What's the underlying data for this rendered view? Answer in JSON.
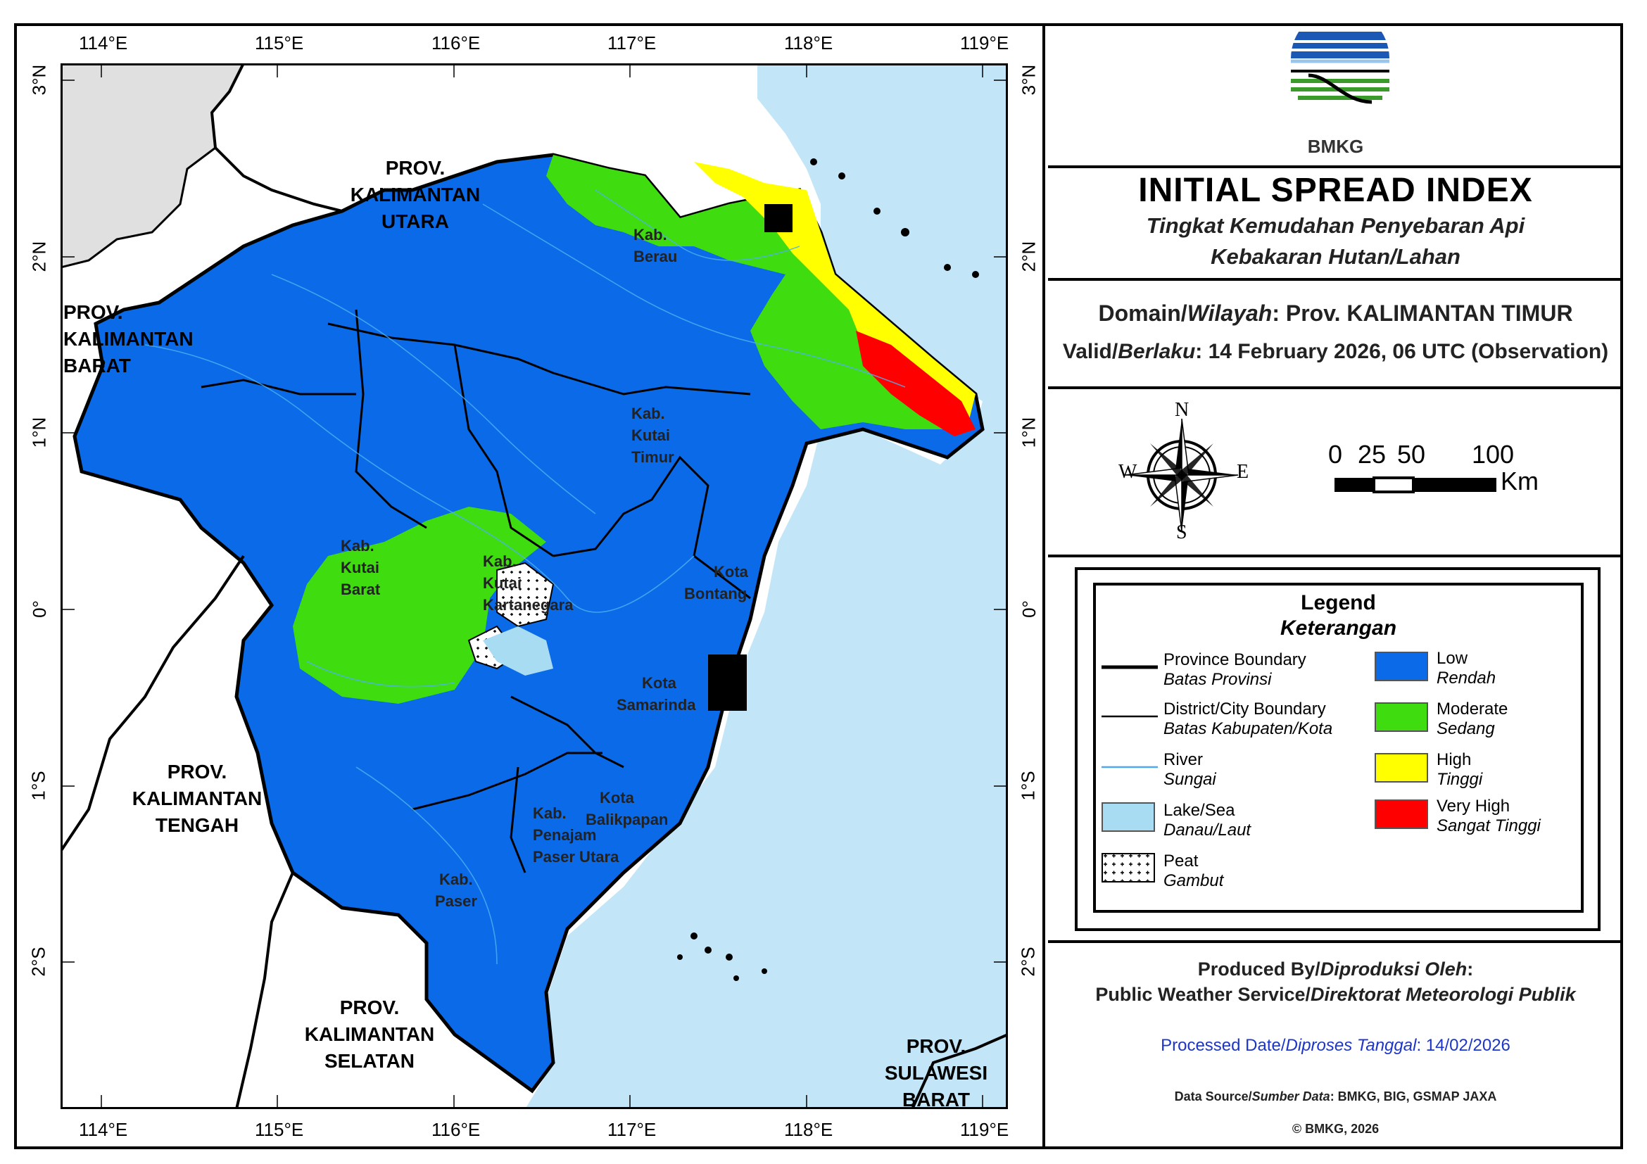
{
  "map": {
    "lon_labels": [
      "114°E",
      "115°E",
      "116°E",
      "117°E",
      "118°E",
      "119°E"
    ],
    "lat_labels": [
      "3°N",
      "2°N",
      "1°N",
      "0°",
      "1°S",
      "2°S"
    ],
    "provinces": [
      {
        "id": "kaltara",
        "lines": [
          "PROV.",
          "KALIMANTAN",
          "UTARA"
        ]
      },
      {
        "id": "kalbar",
        "lines": [
          "PROV.",
          "KALIMANTAN",
          "BARAT"
        ]
      },
      {
        "id": "kalteng",
        "lines": [
          "PROV.",
          "KALIMANTAN",
          "TENGAH"
        ]
      },
      {
        "id": "kalsel",
        "lines": [
          "PROV.",
          "KALIMANTAN",
          "SELATAN"
        ]
      },
      {
        "id": "sulbar",
        "lines": [
          "PROV.",
          "SULAWESI",
          "BARAT"
        ]
      }
    ],
    "districts": [
      {
        "id": "berau",
        "lines": [
          "Kab.",
          "Berau"
        ]
      },
      {
        "id": "kutai-timur",
        "lines": [
          "Kab.",
          "Kutai",
          "Timur"
        ]
      },
      {
        "id": "kutai-barat",
        "lines": [
          "Kab.",
          "Kutai",
          "Barat"
        ]
      },
      {
        "id": "kutai-kartanegara",
        "lines": [
          "Kab.",
          "Kutai",
          "Kartanegara"
        ]
      },
      {
        "id": "bontang",
        "lines": [
          "Kota",
          "Bontang"
        ]
      },
      {
        "id": "samarinda",
        "lines": [
          "Kota",
          "Samarinda"
        ]
      },
      {
        "id": "balikpapan",
        "lines": [
          "Kota",
          "Balikpapan"
        ]
      },
      {
        "id": "ppu",
        "lines": [
          "Kab.",
          "Penajam",
          "Paser Utara"
        ]
      },
      {
        "id": "paser",
        "lines": [
          "Kab.",
          "Paser"
        ]
      }
    ]
  },
  "header": {
    "logo_text": "BMKG",
    "title": "INITIAL SPREAD INDEX",
    "subtitle_1": "Tingkat Kemudahan Penyebaran Api",
    "subtitle_2": "Kebakaran Hutan/Lahan"
  },
  "domain": {
    "label_en": "Domain/",
    "label_id": "Wilayah",
    "value": ": Prov. KALIMANTAN TIMUR",
    "valid_en": "Valid/",
    "valid_id": "Berlaku",
    "valid_value": ": 14 February 2026, 06 UTC (Observation)"
  },
  "compass": {
    "n": "N",
    "s": "S",
    "e": "E",
    "w": "W"
  },
  "scalebar": {
    "labels": [
      "0",
      "25",
      "50",
      "100"
    ],
    "unit": "Km"
  },
  "legend": {
    "title": "Legend",
    "subtitle": "Keterangan",
    "lines": [
      {
        "en": "Province Boundary",
        "id": "Batas Provinsi"
      },
      {
        "en": "District/City Boundary",
        "id": "Batas Kabupaten/Kota"
      },
      {
        "en": "River",
        "id": "Sungai"
      },
      {
        "en": "Lake/Sea",
        "id": "Danau/Laut"
      },
      {
        "en": "Peat",
        "id": "Gambut"
      }
    ],
    "classes": [
      {
        "en": "Low",
        "id": "Rendah",
        "color": "#0a6ae8"
      },
      {
        "en": "Moderate",
        "id": "Sedang",
        "color": "#3fdc10"
      },
      {
        "en": "High",
        "id": "Tinggi",
        "color": "#ffff00"
      },
      {
        "en": "Very High",
        "id": "Sangat Tinggi",
        "color": "#ff0000"
      }
    ],
    "lake_color": "#a8dcf2"
  },
  "footer": {
    "produced_en": "Produced By/",
    "produced_id": "Diproduksi Oleh",
    "produced_colon": ":",
    "service_en": "Public Weather Service/",
    "service_id": "Direktorat Meteorologi Publik",
    "processed_en": "Processed Date/",
    "processed_id": "Diproses Tanggal",
    "processed_value": ": 14/02/2026",
    "source_en": "Data Source/",
    "source_id": "Sumber Data",
    "source_value": ": BMKG, BIG, GSMAP JAXA",
    "copyright": "© BMKG, 2026"
  }
}
